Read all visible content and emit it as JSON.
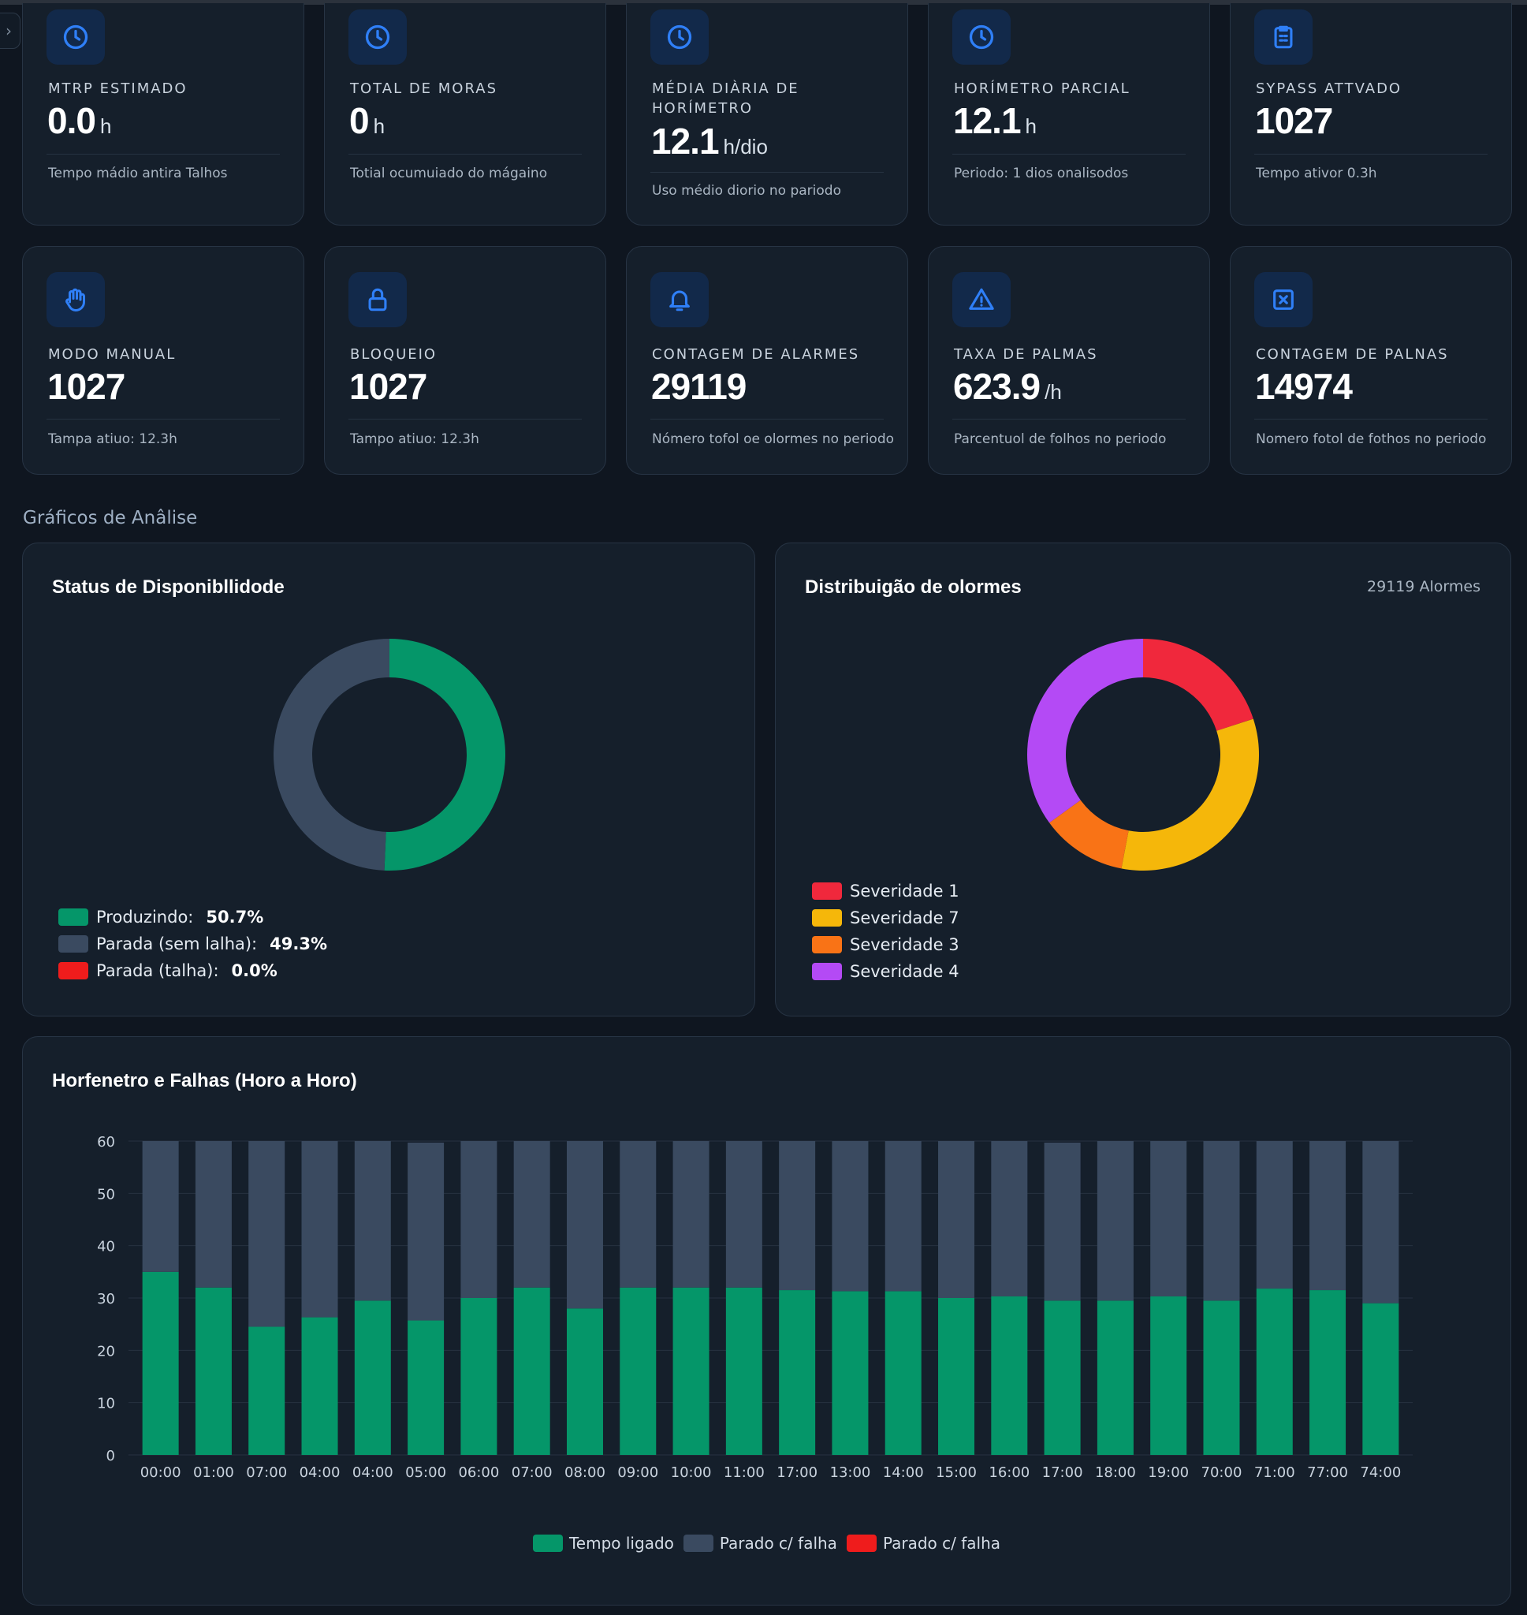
{
  "kpis_row1": [
    {
      "label": "MTRP ESTIMADO",
      "value": "0.0",
      "unit": "h",
      "sub": "Tempo mádio antira Talhos",
      "icon": "clock-icon"
    },
    {
      "label": "TOTAL DE MORAS",
      "value": "0",
      "unit": "h",
      "sub": "Totial ocumuiado do mágaino",
      "icon": "clock-icon"
    },
    {
      "label": "MÉDIA DIÀRIA DE HORÍMETRO",
      "value": "12.1",
      "unit": "h/dio",
      "sub": "Uso médio diorio no pariodo",
      "icon": "clock-icon"
    },
    {
      "label": "HORÍMETRO PARCIAL",
      "value": "12.1",
      "unit": "h",
      "sub": "Periodo: 1 dios onalisodos",
      "icon": "clock-icon"
    },
    {
      "label": "SYPASS ATTVADO",
      "value": "1027",
      "unit": "",
      "sub": "Tempo ativor 0.3h",
      "icon": "clipboard-icon"
    }
  ],
  "kpis_row2": [
    {
      "label": "MODO MANUAL",
      "value": "1027",
      "unit": "",
      "sub": "Tampa atiuo: 12.3h",
      "icon": "hand-icon"
    },
    {
      "label": "BLOQUEIO",
      "value": "1027",
      "unit": "",
      "sub": "Tampo atiuo: 12.3h",
      "icon": "lock-icon"
    },
    {
      "label": "CONTAGEM DE ALARMES",
      "value": "29119",
      "unit": "",
      "sub": "Nómero tofol oe olormes no periodo",
      "icon": "bell-icon"
    },
    {
      "label": "TAXA DE PALMAS",
      "value": "623.9",
      "unit": "/h",
      "sub": "Parcentuol de folhos no periodo",
      "icon": "warning-icon"
    },
    {
      "label": "CONTAGEM DE PALNAS",
      "value": "14974",
      "unit": "",
      "sub": "Nomero fotol de fothos no periodo",
      "icon": "x-square-icon"
    }
  ],
  "section_title": "Gráficos de Anâlise",
  "availability": {
    "title": "Status de Disponibllidode",
    "legend": [
      {
        "label": "Produzindo:",
        "value": "50.7%",
        "color": "#059669"
      },
      {
        "label": "Parada (sem lalha):",
        "value": "49.3%",
        "color": "#3a4a60"
      },
      {
        "label": "Parada (talha):",
        "value": "0.0%",
        "color": "#ef1c1c"
      }
    ]
  },
  "alarms": {
    "title": "Distribuigão de olormes",
    "count": "29119 Alormes",
    "legend": [
      {
        "label": "Severidade 1",
        "color": "#f0283c"
      },
      {
        "label": "Severidade 7",
        "color": "#f5b70a"
      },
      {
        "label": "Severidade 3",
        "color": "#f97316"
      },
      {
        "label": "Severidade 4",
        "color": "#b44af5"
      }
    ]
  },
  "hourly": {
    "title": "Horfenetro e Falhas (Horo a Horo)",
    "legend": [
      {
        "label": "Tempo ligado",
        "color": "#059669"
      },
      {
        "label": "Parado c/ falha",
        "color": "#3a4a60"
      },
      {
        "label": "Parado c/ falha",
        "color": "#ef1c1c"
      }
    ]
  },
  "chart_data": [
    {
      "type": "pie",
      "title": "Status de Disponibllidode",
      "categories": [
        "Produzindo",
        "Parada (sem lalha)",
        "Parada (talha)"
      ],
      "values": [
        50.7,
        49.3,
        0.0
      ],
      "colors": [
        "#059669",
        "#3a4a60",
        "#ef1c1c"
      ],
      "donut": true
    },
    {
      "type": "pie",
      "title": "Distribuigão de olormes",
      "categories": [
        "Severidade 1",
        "Severidade 7",
        "Severidade 3",
        "Severidade 4"
      ],
      "values": [
        20,
        33,
        12,
        35
      ],
      "colors": [
        "#f0283c",
        "#f5b70a",
        "#f97316",
        "#b44af5"
      ],
      "donut": true
    },
    {
      "type": "bar",
      "stacked": true,
      "title": "Horfenetro e Falhas (Horo a Horo)",
      "categories": [
        "00:00",
        "01:00",
        "07:00",
        "04:00",
        "04:00",
        "05:00",
        "06:00",
        "07:00",
        "08:00",
        "09:00",
        "10:00",
        "11:00",
        "17:00",
        "13:00",
        "14:00",
        "15:00",
        "16:00",
        "17:00",
        "18:00",
        "19:00",
        "70:00",
        "71:00",
        "77:00",
        "74:00"
      ],
      "series": [
        {
          "name": "Tempo ligado",
          "color": "#059669",
          "values": [
            35,
            32,
            24.5,
            26.3,
            29.5,
            25.7,
            30,
            32,
            28,
            32,
            32,
            32,
            31.5,
            31.3,
            31.3,
            30,
            30.3,
            29.5,
            29.5,
            30.3,
            29.5,
            31.8,
            31.5,
            29
          ]
        },
        {
          "name": "Parado c/ falha",
          "color": "#3a4a60",
          "values": [
            25,
            28,
            35.5,
            33.7,
            30.5,
            34,
            30,
            28,
            32,
            28,
            28,
            28,
            28.5,
            28.7,
            28.7,
            30,
            29.7,
            30.2,
            30.5,
            29.7,
            30.5,
            28.2,
            28.5,
            31
          ]
        },
        {
          "name": "Parado c/ falha",
          "color": "#ef1c1c",
          "values": [
            0,
            0,
            0,
            0,
            0,
            0,
            0,
            0,
            0,
            0,
            0,
            0,
            0,
            0,
            0,
            0,
            0,
            0,
            0,
            0,
            0,
            0,
            0,
            0
          ]
        }
      ],
      "ylim": [
        0,
        60
      ],
      "yticks": [
        0,
        10,
        20,
        30,
        40,
        50,
        60
      ],
      "grid": true,
      "legend": "bottom"
    }
  ]
}
